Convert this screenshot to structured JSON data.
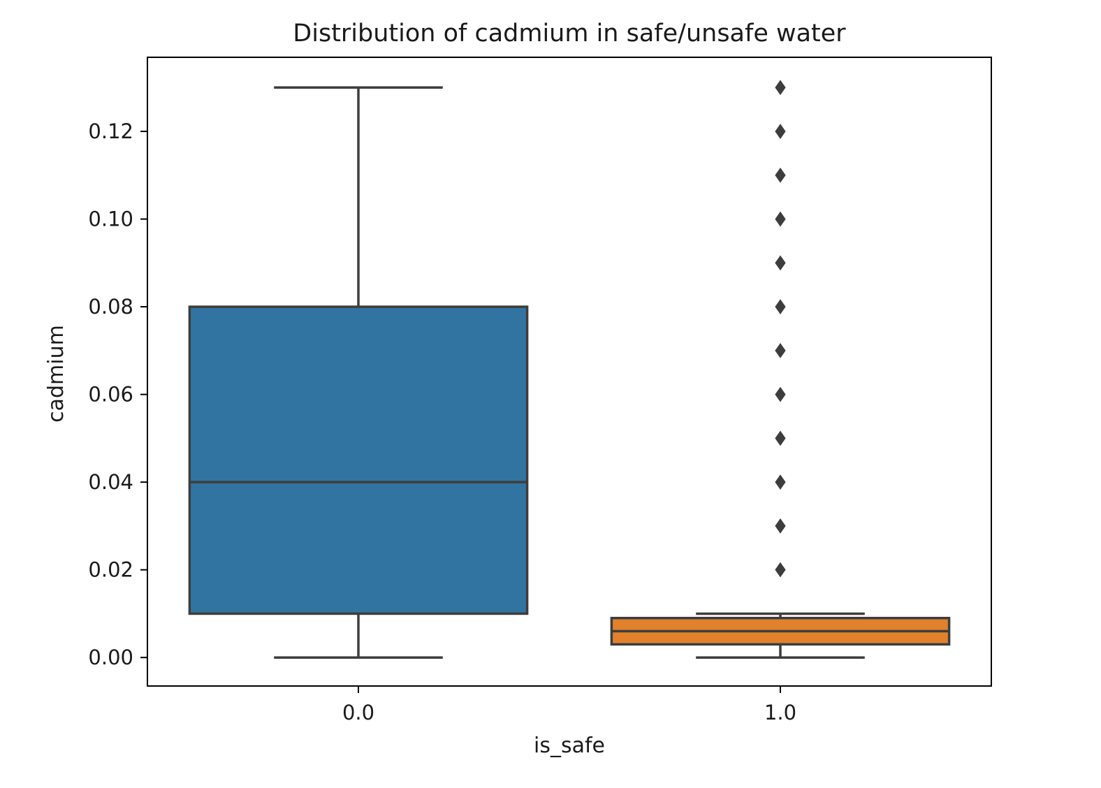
{
  "chart_data": {
    "type": "box",
    "title": "Distribution of cadmium in safe/unsafe water",
    "xlabel": "is_safe",
    "ylabel": "cadmium",
    "categories": [
      "0.0",
      "1.0"
    ],
    "ylim": [
      -0.0065,
      0.1369
    ],
    "yticks": [
      0.0,
      0.02,
      0.04,
      0.06,
      0.08,
      0.1,
      0.12
    ],
    "ytick_labels": [
      "0.00",
      "0.02",
      "0.04",
      "0.06",
      "0.08",
      "0.10",
      "0.12"
    ],
    "grid": false,
    "boxes": [
      {
        "category": "0.0",
        "color": "#3274a1",
        "whisker_low": 0.0,
        "q1": 0.01,
        "median": 0.04,
        "q3": 0.08,
        "whisker_high": 0.13,
        "outliers": []
      },
      {
        "category": "1.0",
        "color": "#e1812c",
        "whisker_low": 0.0,
        "q1": 0.003,
        "median": 0.006,
        "q3": 0.009,
        "whisker_high": 0.01,
        "outliers": [
          0.02,
          0.03,
          0.04,
          0.05,
          0.06,
          0.07,
          0.08,
          0.09,
          0.1,
          0.11,
          0.12,
          0.13
        ]
      }
    ],
    "line_color": "#3d3d3d"
  }
}
